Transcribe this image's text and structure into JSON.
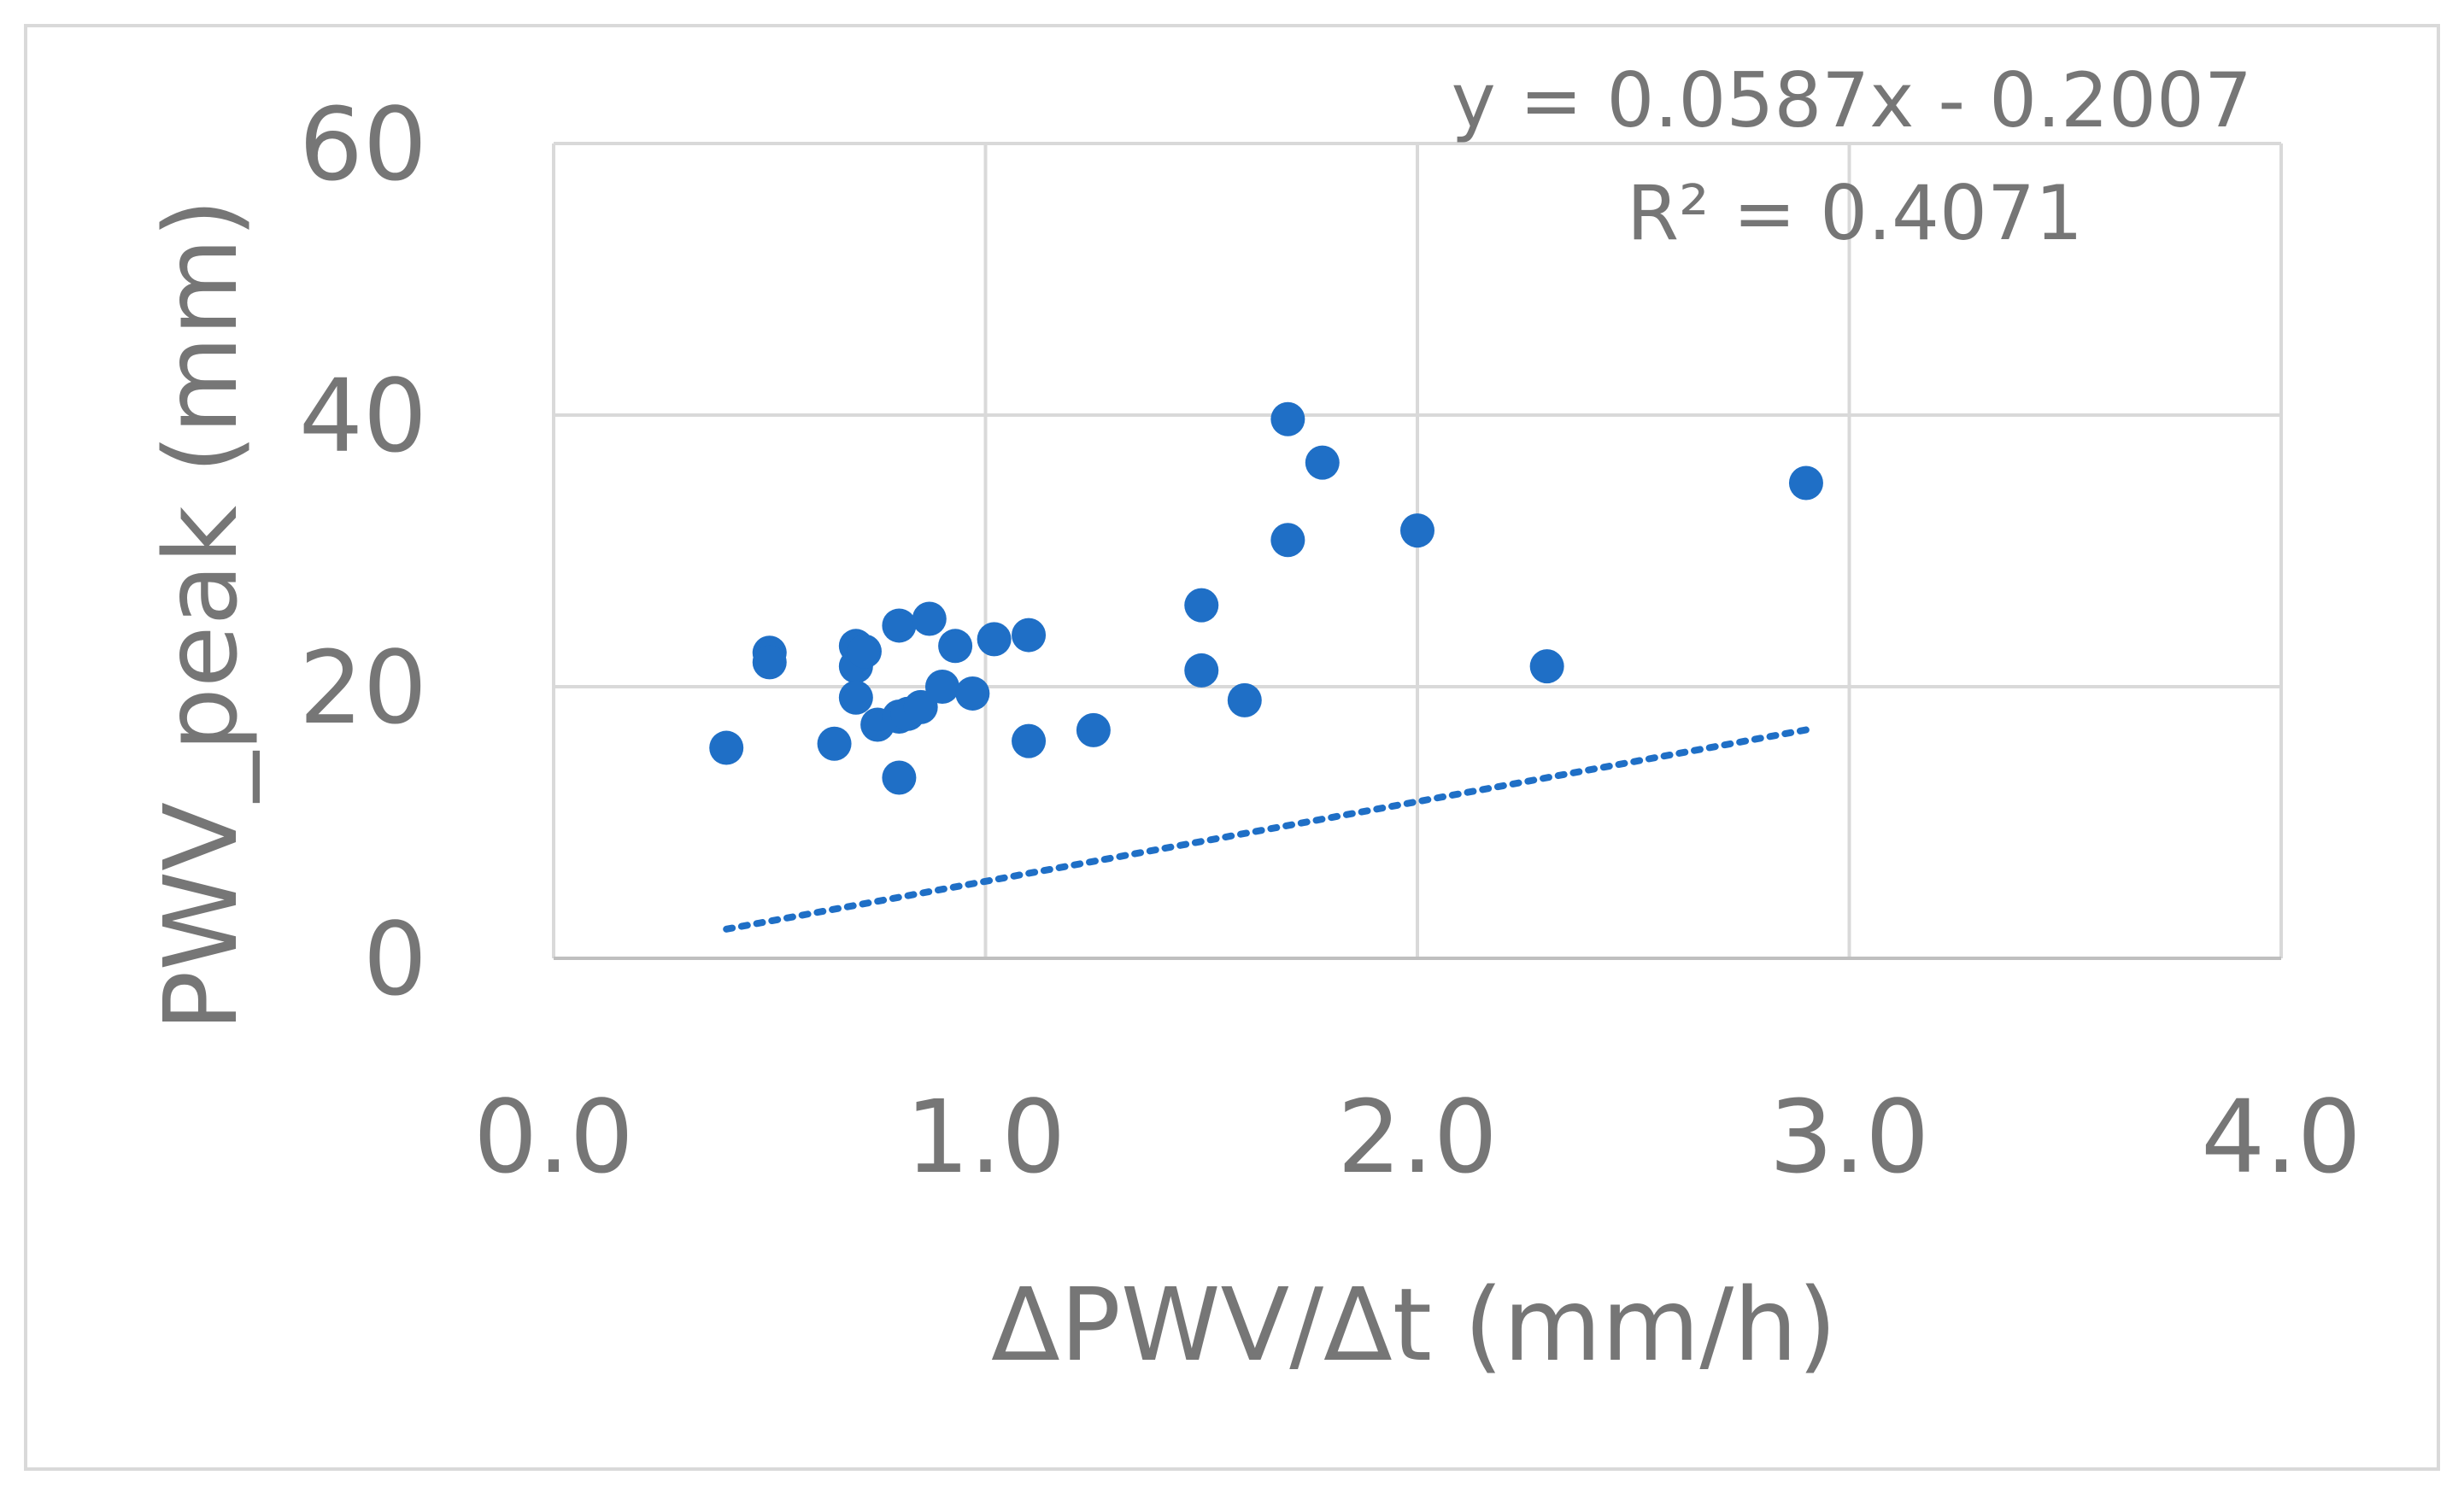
{
  "chart_data": {
    "type": "scatter",
    "title": "",
    "xlabel": "ΔPWV/Δt (mm/h)",
    "ylabel": "PWV_peak (mm)",
    "xlim": [
      0.0,
      4.0
    ],
    "ylim": [
      0,
      60
    ],
    "x_ticks": [
      0.0,
      1.0,
      2.0,
      3.0,
      4.0
    ],
    "x_tick_labels": [
      "0.0",
      "1.0",
      "2.0",
      "3.0",
      "4.0"
    ],
    "y_ticks": [
      0,
      20,
      40,
      60
    ],
    "y_tick_labels": [
      "0",
      "20",
      "40",
      "60"
    ],
    "grid": true,
    "legend": "none",
    "series": [
      {
        "marker_color": "#1f6fc6",
        "points": [
          [
            0.4,
            15.5
          ],
          [
            0.5,
            22.5
          ],
          [
            0.5,
            21.8
          ],
          [
            0.65,
            15.8
          ],
          [
            0.7,
            23.0
          ],
          [
            0.7,
            21.5
          ],
          [
            0.72,
            22.6
          ],
          [
            0.7,
            19.2
          ],
          [
            0.75,
            17.2
          ],
          [
            0.8,
            24.5
          ],
          [
            0.8,
            17.8
          ],
          [
            0.82,
            18.0
          ],
          [
            0.85,
            18.5
          ],
          [
            0.87,
            25.0
          ],
          [
            0.9,
            20.0
          ],
          [
            0.93,
            23.0
          ],
          [
            0.97,
            19.5
          ],
          [
            1.02,
            23.5
          ],
          [
            1.1,
            23.8
          ],
          [
            1.1,
            16.0
          ],
          [
            0.8,
            13.3
          ],
          [
            1.25,
            16.8
          ],
          [
            1.5,
            26.0
          ],
          [
            1.5,
            21.2
          ],
          [
            1.6,
            19.0
          ],
          [
            1.7,
            39.7
          ],
          [
            1.7,
            30.8
          ],
          [
            1.78,
            36.5
          ],
          [
            2.0,
            31.5
          ],
          [
            2.3,
            21.5
          ],
          [
            2.9,
            35.0
          ]
        ]
      }
    ],
    "trendline": {
      "style": "dotted",
      "color": "#1f6fc6",
      "slope": 0.0587,
      "intercept": -0.2007,
      "x_range": [
        0.4,
        2.9
      ]
    },
    "annotations": {
      "equation": "y = 0.0587x - 0.2007",
      "r_squared": "R² = 0.4071"
    }
  }
}
